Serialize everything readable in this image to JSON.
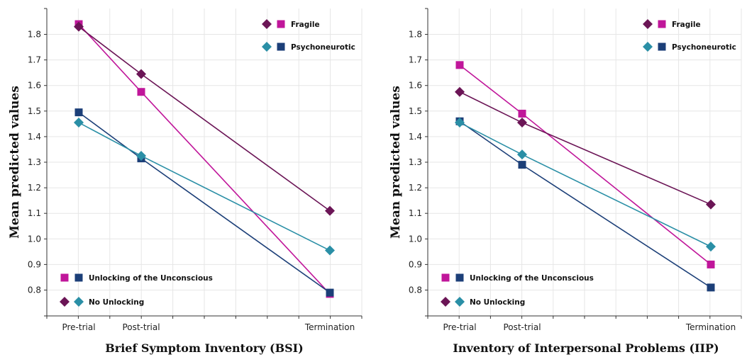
{
  "colors": {
    "fragile_unlocking": "#c0169a",
    "fragile_no_unlocking": "#6b1556",
    "psycho_unlocking": "#1c3f78",
    "psycho_no_unlocking": "#2a8fa6",
    "grid": "#e6e6e6",
    "axis": "#333333"
  },
  "legend": {
    "fragile": "Fragile",
    "psychoneurotic": "Psychoneurotic",
    "unlocking": "Unlocking of the Unconscious",
    "no_unlocking": "No Unlocking"
  },
  "chart_data": [
    {
      "type": "line",
      "xlabel": "Brief Symptom Inventory (BSI)",
      "ylabel": "Mean predicted values",
      "categories": [
        "Pre-trial",
        "Post-trial",
        "Termination"
      ],
      "ylim": [
        0.7,
        1.9
      ],
      "yticks": [
        "0.8",
        "0.9",
        "1.0",
        "1.1",
        "1.2",
        "1.3",
        "1.4",
        "1.5",
        "1.6",
        "1.7",
        "1.8"
      ],
      "grid": true,
      "series": [
        {
          "key": "fragile_unlocking",
          "marker": "square",
          "values": [
            1.84,
            1.575,
            0.785
          ]
        },
        {
          "key": "fragile_no_unlocking",
          "marker": "diamond",
          "values": [
            1.83,
            1.645,
            1.11
          ]
        },
        {
          "key": "psycho_unlocking",
          "marker": "square",
          "values": [
            1.495,
            1.315,
            0.79
          ]
        },
        {
          "key": "psycho_no_unlocking",
          "marker": "diamond",
          "values": [
            1.455,
            1.325,
            0.955
          ]
        }
      ]
    },
    {
      "type": "line",
      "xlabel": "Inventory of Interpersonal Problems (IIP)",
      "ylabel": "Mean predicted values",
      "categories": [
        "Pre-trial",
        "Post-trial",
        "Termination"
      ],
      "ylim": [
        0.7,
        1.9
      ],
      "yticks": [
        "0.8",
        "0.9",
        "1.0",
        "1.1",
        "1.2",
        "1.3",
        "1.4",
        "1.5",
        "1.6",
        "1.7",
        "1.8"
      ],
      "grid": true,
      "series": [
        {
          "key": "fragile_unlocking",
          "marker": "square",
          "values": [
            1.68,
            1.49,
            0.9
          ]
        },
        {
          "key": "fragile_no_unlocking",
          "marker": "diamond",
          "values": [
            1.575,
            1.455,
            1.135
          ]
        },
        {
          "key": "psycho_unlocking",
          "marker": "square",
          "values": [
            1.46,
            1.29,
            0.81
          ]
        },
        {
          "key": "psycho_no_unlocking",
          "marker": "diamond",
          "values": [
            1.455,
            1.33,
            0.97
          ]
        }
      ]
    }
  ]
}
